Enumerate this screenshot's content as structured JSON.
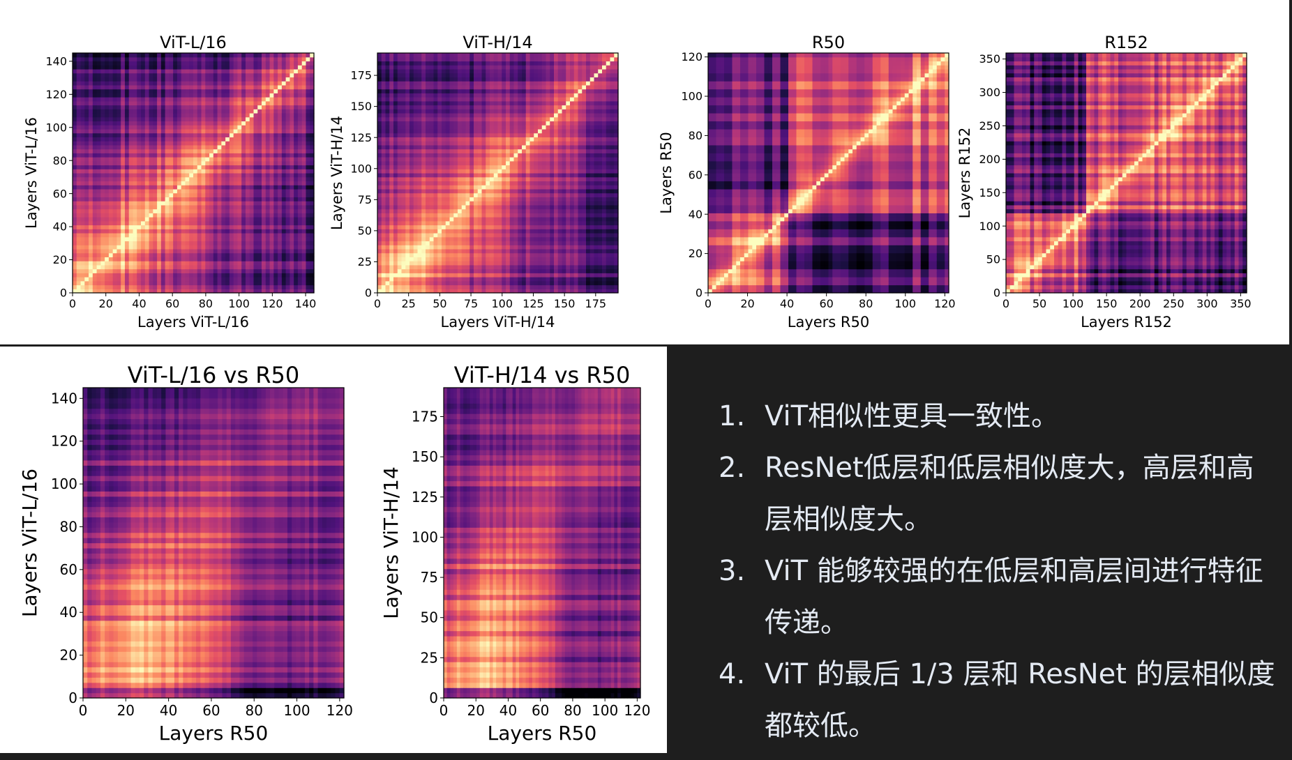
{
  "colors": {
    "background": "#1e1e1e",
    "panel": "#ffffff",
    "notes_text": "#e4eaf3",
    "colormap": "magma"
  },
  "chart_data": [
    {
      "id": "vitl16",
      "type": "heatmap",
      "title": "ViT-L/16",
      "xlabel": "Layers ViT-L/16",
      "ylabel": "Layers ViT-L/16",
      "xlim": [
        0,
        145
      ],
      "ylim": [
        0,
        145
      ],
      "xticks": [
        0,
        20,
        40,
        60,
        80,
        100,
        120,
        140
      ],
      "yticks": [
        0,
        20,
        40,
        60,
        80,
        100,
        120,
        140
      ],
      "pattern": "self-vit",
      "n": 145
    },
    {
      "id": "vith14",
      "type": "heatmap",
      "title": "ViT-H/14",
      "xlabel": "Layers ViT-H/14",
      "ylabel": "Layers ViT-H/14",
      "xlim": [
        0,
        193
      ],
      "ylim": [
        0,
        193
      ],
      "xticks": [
        0,
        25,
        50,
        75,
        100,
        125,
        150,
        175
      ],
      "yticks": [
        0,
        25,
        50,
        75,
        100,
        125,
        150,
        175
      ],
      "pattern": "self-vit",
      "n": 193
    },
    {
      "id": "r50",
      "type": "heatmap",
      "title": "R50",
      "xlabel": "Layers R50",
      "ylabel": "Layers R50",
      "xlim": [
        0,
        122
      ],
      "ylim": [
        0,
        122
      ],
      "xticks": [
        0,
        20,
        40,
        60,
        80,
        100,
        120
      ],
      "yticks": [
        0,
        20,
        40,
        60,
        80,
        100,
        120
      ],
      "pattern": "self-resnet",
      "n": 122
    },
    {
      "id": "r152",
      "type": "heatmap",
      "title": "R152",
      "xlabel": "Layers R152",
      "ylabel": "Layers R152",
      "xlim": [
        0,
        359
      ],
      "ylim": [
        0,
        359
      ],
      "xticks": [
        0,
        50,
        100,
        150,
        200,
        250,
        300,
        350
      ],
      "yticks": [
        0,
        50,
        100,
        150,
        200,
        250,
        300,
        350
      ],
      "pattern": "self-resnet152",
      "n": 359
    },
    {
      "id": "vitl16_r50",
      "type": "heatmap",
      "title": "ViT-L/16 vs R50",
      "xlabel": "Layers R50",
      "ylabel": "Layers ViT-L/16",
      "xlim": [
        0,
        122
      ],
      "ylim": [
        0,
        145
      ],
      "xticks": [
        0,
        20,
        40,
        60,
        80,
        100,
        120
      ],
      "yticks": [
        0,
        20,
        40,
        60,
        80,
        100,
        120,
        140
      ],
      "pattern": "cross",
      "n": 122,
      "m": 145
    },
    {
      "id": "vith14_r50",
      "type": "heatmap",
      "title": "ViT-H/14 vs R50",
      "xlabel": "Layers R50",
      "ylabel": "Layers ViT-H/14",
      "xlim": [
        0,
        122
      ],
      "ylim": [
        0,
        193
      ],
      "xticks": [
        0,
        20,
        40,
        60,
        80,
        100,
        120
      ],
      "yticks": [
        0,
        25,
        50,
        75,
        100,
        125,
        150,
        175
      ],
      "pattern": "cross",
      "n": 122,
      "m": 193
    }
  ],
  "notes": [
    {
      "num": "1.",
      "text": "ViT相似性更具一致性。"
    },
    {
      "num": "2.",
      "text": "ResNet低层和低层相似度大，高层和高层相似度大。"
    },
    {
      "num": "3.",
      "text": "ViT 能够较强的在低层和高层间进行特征传递。"
    },
    {
      "num": "4.",
      "text": "ViT 的最后 1/3 层和 ResNet 的层相似度都较低。"
    }
  ]
}
